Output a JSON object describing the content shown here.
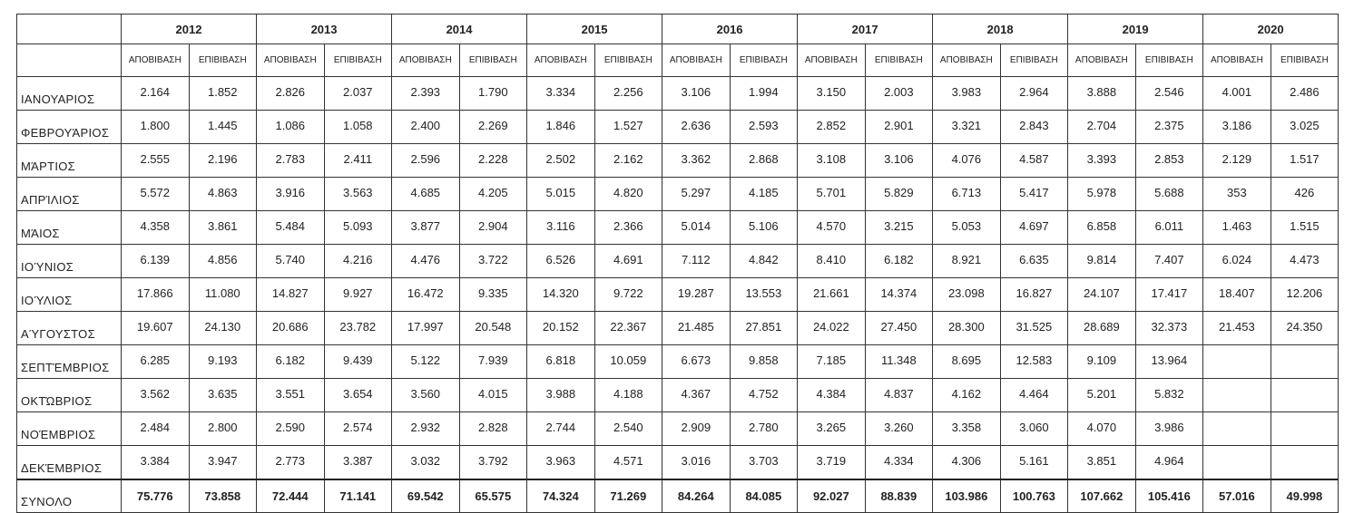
{
  "table": {
    "years": [
      "2012",
      "2013",
      "2014",
      "2015",
      "2016",
      "2017",
      "2018",
      "2019",
      "2020"
    ],
    "columns": [
      "ΑΠΟΒΙΒΑΣΗ",
      "ΕΠΙΒΙΒΑΣΗ"
    ],
    "rows": [
      {
        "label": "ΙΑΝΟΥΑΡΙΟΣ",
        "cells": [
          "2.164",
          "1.852",
          "2.826",
          "2.037",
          "2.393",
          "1.790",
          "3.334",
          "2.256",
          "3.106",
          "1.994",
          "3.150",
          "2.003",
          "3.983",
          "2.964",
          "3.888",
          "2.546",
          "4.001",
          "2.486"
        ]
      },
      {
        "label": "ΦΕΒΡΟΥΆΡΙΟΣ",
        "cells": [
          "1.800",
          "1.445",
          "1.086",
          "1.058",
          "2.400",
          "2.269",
          "1.846",
          "1.527",
          "2.636",
          "2.593",
          "2.852",
          "2.901",
          "3.321",
          "2.843",
          "2.704",
          "2.375",
          "3.186",
          "3.025"
        ]
      },
      {
        "label": "ΜΆΡΤΙΟΣ",
        "cells": [
          "2.555",
          "2.196",
          "2.783",
          "2.411",
          "2.596",
          "2.228",
          "2.502",
          "2.162",
          "3.362",
          "2.868",
          "3.108",
          "3.106",
          "4.076",
          "4.587",
          "3.393",
          "2.853",
          "2.129",
          "1.517"
        ]
      },
      {
        "label": "ΑΠΡΊΛΙΟΣ",
        "cells": [
          "5.572",
          "4.863",
          "3.916",
          "3.563",
          "4.685",
          "4.205",
          "5.015",
          "4.820",
          "5.297",
          "4.185",
          "5.701",
          "5.829",
          "6.713",
          "5.417",
          "5.978",
          "5.688",
          "353",
          "426"
        ]
      },
      {
        "label": "ΜΆΙΟΣ",
        "cells": [
          "4.358",
          "3.861",
          "5.484",
          "5.093",
          "3.877",
          "2.904",
          "3.116",
          "2.366",
          "5.014",
          "5.106",
          "4.570",
          "3.215",
          "5.053",
          "4.697",
          "6.858",
          "6.011",
          "1.463",
          "1.515"
        ]
      },
      {
        "label": "ΙΟΎΝΙΟΣ",
        "cells": [
          "6.139",
          "4.856",
          "5.740",
          "4.216",
          "4.476",
          "3.722",
          "6.526",
          "4.691",
          "7.112",
          "4.842",
          "8.410",
          "6.182",
          "8.921",
          "6.635",
          "9.814",
          "7.407",
          "6.024",
          "4.473"
        ]
      },
      {
        "label": "ΙΟΎΛΙΟΣ",
        "cells": [
          "17.866",
          "11.080",
          "14.827",
          "9.927",
          "16.472",
          "9.335",
          "14.320",
          "9.722",
          "19.287",
          "13.553",
          "21.661",
          "14.374",
          "23.098",
          "16.827",
          "24.107",
          "17.417",
          "18.407",
          "12.206"
        ]
      },
      {
        "label": "ΑΎΓΟΥΣΤΟΣ",
        "cells": [
          "19.607",
          "24.130",
          "20.686",
          "23.782",
          "17.997",
          "20.548",
          "20.152",
          "22.367",
          "21.485",
          "27.851",
          "24.022",
          "27.450",
          "28.300",
          "31.525",
          "28.689",
          "32.373",
          "21.453",
          "24.350"
        ]
      },
      {
        "label": "ΣΕΠΤΈΜΒΡΙΟΣ",
        "cells": [
          "6.285",
          "9.193",
          "6.182",
          "9.439",
          "5.122",
          "7.939",
          "6.818",
          "10.059",
          "6.673",
          "9.858",
          "7.185",
          "11.348",
          "8.695",
          "12.583",
          "9.109",
          "13.964"
        ]
      },
      {
        "label": "ΟΚΤΏΒΡΙΟΣ",
        "cells": [
          "3.562",
          "3.635",
          "3.551",
          "3.654",
          "3.560",
          "4.015",
          "3.988",
          "4.188",
          "4.367",
          "4.752",
          "4.384",
          "4.837",
          "4.162",
          "4.464",
          "5.201",
          "5.832"
        ]
      },
      {
        "label": "ΝΟΈΜΒΡΙΟΣ",
        "cells": [
          "2.484",
          "2.800",
          "2.590",
          "2.574",
          "2.932",
          "2.828",
          "2.744",
          "2.540",
          "2.909",
          "2.780",
          "3.265",
          "3.260",
          "3.358",
          "3.060",
          "4.070",
          "3.986"
        ]
      },
      {
        "label": "ΔΕΚΈΜΒΡΙΟΣ",
        "cells": [
          "3.384",
          "3.947",
          "2.773",
          "3.387",
          "3.032",
          "3.792",
          "3.963",
          "4.571",
          "3.016",
          "3.703",
          "3.719",
          "4.334",
          "4.306",
          "5.161",
          "3.851",
          "4.964"
        ]
      }
    ],
    "total": {
      "label": "ΣΥΝΟΛΟ",
      "cells": [
        "75.776",
        "73.858",
        "72.444",
        "71.141",
        "69.542",
        "65.575",
        "74.324",
        "71.269",
        "84.264",
        "84.085",
        "92.027",
        "88.839",
        "103.986",
        "100.763",
        "107.662",
        "105.416",
        "57.016",
        "49.998"
      ]
    }
  }
}
